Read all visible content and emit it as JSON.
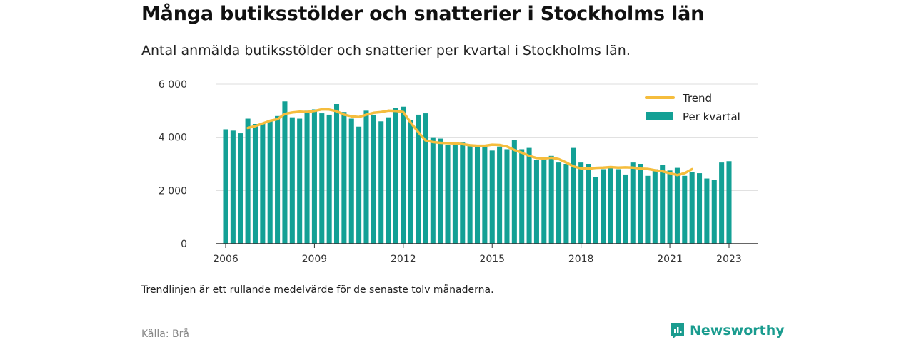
{
  "title": "Många butiksstölder och snatterier i Stockholms län",
  "subtitle": "Antal anmälda butiksstölder och snatterier per kvartal i Stockholms län.",
  "footnote": "Trendlinjen är ett rullande medelvärde för de senaste tolv månaderna.",
  "source": "Källa: Brå",
  "brand": {
    "name": "Newsworthy",
    "icon": "newsworthy-logo-icon"
  },
  "colors": {
    "bars": "#13a095",
    "trend": "#f5bd3d",
    "grid": "#dddddd",
    "axis": "#333333"
  },
  "chart_data": {
    "type": "bar",
    "x_start": 2006,
    "x_step": 0.25,
    "xlim": [
      2006,
      2023.25
    ],
    "ylim": [
      0,
      6000
    ],
    "yticks": [
      0,
      2000,
      4000,
      6000
    ],
    "ytick_labels": [
      "0",
      "2 000",
      "4 000",
      "6 000"
    ],
    "xticks": [
      2006,
      2009,
      2012,
      2015,
      2018,
      2021,
      2023
    ],
    "xtick_labels": [
      "2006",
      "2009",
      "2012",
      "2015",
      "2018",
      "2021",
      "2023"
    ],
    "grid": true,
    "legend_position": "top-right",
    "series": [
      {
        "name": "Per kvartal",
        "kind": "bar",
        "values": [
          4300,
          4250,
          4150,
          4700,
          4500,
          4500,
          4650,
          4800,
          5350,
          4750,
          4700,
          5000,
          5050,
          4900,
          4850,
          5250,
          4950,
          4700,
          4400,
          5000,
          4850,
          4600,
          4750,
          5100,
          5150,
          4650,
          4850,
          4900,
          4000,
          3950,
          3700,
          3800,
          3800,
          3700,
          3650,
          3700,
          3500,
          3650,
          3550,
          3900,
          3550,
          3600,
          3150,
          3250,
          3300,
          3050,
          3000,
          3600,
          3050,
          3000,
          2500,
          2800,
          2900,
          2800,
          2600,
          3050,
          3000,
          2550,
          2800,
          2950,
          2750,
          2850,
          2550,
          2700,
          2650,
          2450,
          2400,
          3050,
          3100
        ]
      },
      {
        "name": "Trend",
        "kind": "line",
        "start_index": 3,
        "values": [
          4350,
          4420,
          4520,
          4620,
          4680,
          4880,
          4930,
          4960,
          4950,
          4990,
          5050,
          5040,
          4980,
          4850,
          4790,
          4760,
          4850,
          4920,
          4950,
          5000,
          4990,
          4950,
          4550,
          4200,
          3880,
          3820,
          3790,
          3780,
          3770,
          3740,
          3700,
          3680,
          3680,
          3720,
          3710,
          3650,
          3520,
          3420,
          3300,
          3220,
          3200,
          3230,
          3180,
          3050,
          2900,
          2830,
          2820,
          2850,
          2860,
          2880,
          2860,
          2870,
          2860,
          2820,
          2810,
          2760,
          2720,
          2650,
          2580,
          2650,
          2800
        ]
      }
    ]
  }
}
